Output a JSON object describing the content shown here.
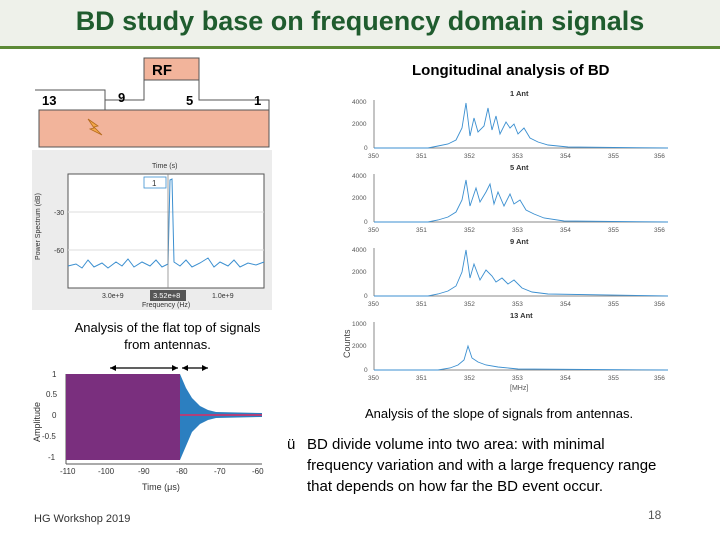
{
  "slide": {
    "title": "BD study base on frequency domain signals",
    "footer": "HG Workshop 2019",
    "page_number": "18"
  },
  "structure": {
    "rf_label": "RF",
    "cells": [
      "13",
      "9",
      "5",
      "1"
    ],
    "accent_colors": {
      "cavity": "#f2b49b",
      "arrow": "#f4a84a",
      "title": "#1f5c2e",
      "rule": "#5c8a36"
    }
  },
  "spectrum_plot": {
    "top_label": "Time (s)",
    "legend": "1",
    "ylabel": "Power Spectrum (dB)",
    "xlabel": "Frequency (Hz)",
    "yticks": [
      "-30",
      "-60"
    ],
    "xticks": [
      "3.0e+9",
      "1.0e+9"
    ],
    "readout": "3.52e+8"
  },
  "captions": {
    "flat_top": "Analysis of the flat top of signals\nfrom antennas.",
    "slope": "Analysis of the slope of signals from antennas."
  },
  "longitudinal": {
    "title": "Longitudinal analysis of BD",
    "ylabel": "Counts",
    "xlabel": "[MHz]",
    "panels": [
      {
        "name": "1 Ant",
        "yticks": [
          "4000",
          "2000",
          "0"
        ]
      },
      {
        "name": "5 Ant",
        "yticks": [
          "4000",
          "2000",
          "0"
        ]
      },
      {
        "name": "9 Ant",
        "yticks": [
          "4000",
          "2000",
          "0"
        ]
      },
      {
        "name": "13 Ant",
        "yticks": [
          "1000",
          "2000",
          "0"
        ]
      }
    ],
    "xticks": [
      "350",
      "351",
      "352",
      "353",
      "354",
      "355",
      "356"
    ]
  },
  "amplitude_plot": {
    "ylabel": "Amplitude",
    "xlabel": "Time (μs)",
    "yticks": [
      "1",
      "0.5",
      "0",
      "-0.5",
      "-1"
    ],
    "xticks": [
      "-110",
      "-100",
      "-90",
      "-80",
      "-70",
      "-60"
    ]
  },
  "bullet": {
    "mark": "ü",
    "lines": [
      "BD divide volume into two area: with minimal",
      "frequency variation and with a large frequency range",
      "that depends on how far the BD event occur."
    ]
  }
}
